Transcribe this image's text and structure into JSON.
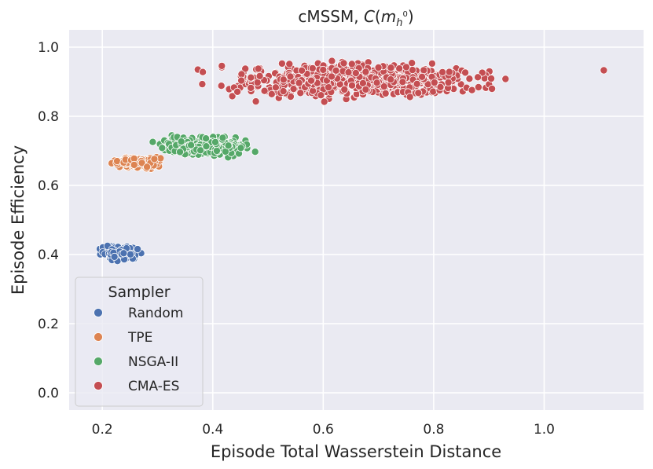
{
  "chart_data": {
    "type": "scatter",
    "title_text": "cMSSM, ",
    "title_math": {
      "base": "C",
      "open": "(",
      "var": "m",
      "sub": "h",
      "sup": "0",
      "close": ")"
    },
    "xlabel": "Episode Total Wasserstein Distance",
    "ylabel": "Episode Efficiency",
    "xlim": [
      0.14,
      1.18
    ],
    "ylim": [
      -0.05,
      1.05
    ],
    "xticks": [
      0.2,
      0.4,
      0.6,
      0.8,
      1.0
    ],
    "xtick_labels": [
      "0.2",
      "0.4",
      "0.6",
      "0.8",
      "1.0"
    ],
    "yticks": [
      0.0,
      0.2,
      0.4,
      0.6,
      0.8,
      1.0
    ],
    "ytick_labels": [
      "0.0",
      "0.2",
      "0.4",
      "0.6",
      "0.8",
      "1.0"
    ],
    "grid": true,
    "background": "#eaeaf2",
    "legend": {
      "title": "Sampler",
      "placement": "lower-left"
    },
    "series": [
      {
        "name": "Random",
        "color": "#4c72b0",
        "cluster": {
          "x_range": [
            0.185,
            0.275
          ],
          "y_range": [
            0.38,
            0.43
          ],
          "count": 140
        }
      },
      {
        "name": "TPE",
        "color": "#dd8452",
        "cluster": {
          "x_range": [
            0.21,
            0.315
          ],
          "y_range": [
            0.645,
            0.69
          ],
          "count": 150
        }
      },
      {
        "name": "NSGA-II",
        "color": "#55a868",
        "cluster": {
          "x_range": [
            0.27,
            0.495
          ],
          "y_range": [
            0.675,
            0.75
          ],
          "count": 260
        }
      },
      {
        "name": "CMA-ES",
        "color": "#c44e52",
        "cluster": {
          "x_range": [
            0.37,
            0.95
          ],
          "y_range": [
            0.84,
            0.97
          ],
          "count": 650
        },
        "outliers": [
          [
            0.373,
            0.935
          ],
          [
            0.381,
            0.893
          ],
          [
            0.382,
            0.928
          ],
          [
            1.108,
            0.933
          ],
          [
            0.93,
            0.908
          ],
          [
            0.757,
            0.856
          ],
          [
            0.602,
            0.842
          ],
          [
            0.478,
            0.843
          ]
        ]
      }
    ]
  }
}
